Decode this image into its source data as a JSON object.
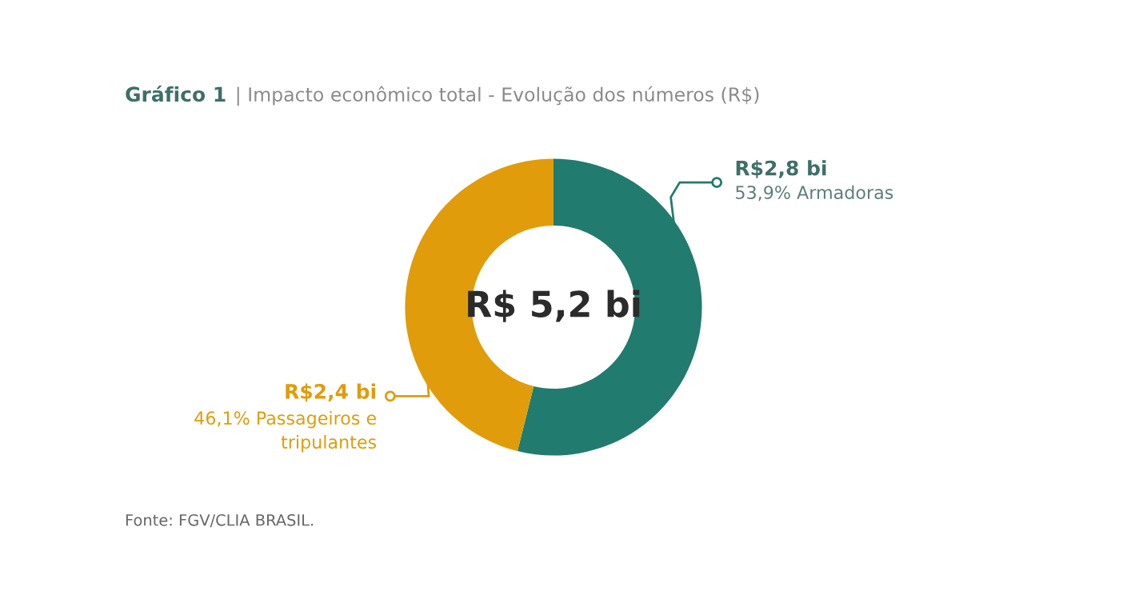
{
  "chart_data": {
    "type": "donut",
    "title": "Gráfico 1 | Impacto econômico total - Evolução dos números (R$)",
    "categories": [
      "53,9% Armadoras",
      "46,1% Passageiros e\ntripulantes"
    ],
    "values": [
      53.9,
      46.1
    ],
    "colors": [
      "#227b6f",
      "#e09c0b"
    ],
    "value_labels": [
      "R$2,8 bi",
      "R$2,4 bi"
    ],
    "annotations": [
      "R$ 5,2 bi",
      "Fonte: FGV/CLIA BRASIL."
    ]
  }
}
